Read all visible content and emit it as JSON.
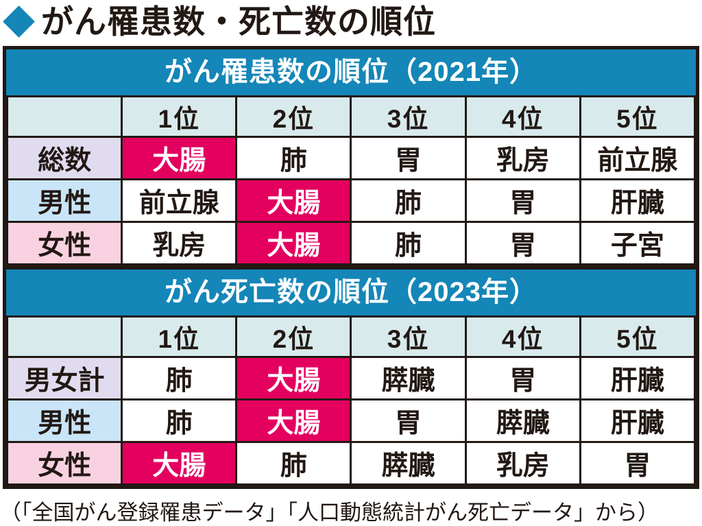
{
  "title": "がん罹患数・死亡数の順位",
  "source_note": "（「全国がん登録罹患データ」「人口動態統計がん死亡データ」から）",
  "colors": {
    "accent_blue": "#1486B8",
    "highlight_pink": "#E3005F",
    "rank_header_bg": "#D8EAEC",
    "total_label_bg": "#E0DBEE",
    "male_label_bg": "#C9E5F7",
    "female_label_bg": "#F8D2E0",
    "border_black": "#221814",
    "text_black": "#221814"
  },
  "chart_data": [
    {
      "type": "table",
      "title": "がん罹患数の順位（2021年）",
      "columns": [
        "",
        "1位",
        "2位",
        "3位",
        "4位",
        "5位"
      ],
      "rows": [
        {
          "label": "総数",
          "cells": [
            {
              "text": "大腸",
              "highlight": true
            },
            {
              "text": "肺",
              "highlight": false
            },
            {
              "text": "胃",
              "highlight": false
            },
            {
              "text": "乳房",
              "highlight": false
            },
            {
              "text": "前立腺",
              "highlight": false
            }
          ]
        },
        {
          "label": "男性",
          "cells": [
            {
              "text": "前立腺",
              "highlight": false
            },
            {
              "text": "大腸",
              "highlight": true
            },
            {
              "text": "肺",
              "highlight": false
            },
            {
              "text": "胃",
              "highlight": false
            },
            {
              "text": "肝臓",
              "highlight": false
            }
          ]
        },
        {
          "label": "女性",
          "cells": [
            {
              "text": "乳房",
              "highlight": false
            },
            {
              "text": "大腸",
              "highlight": true
            },
            {
              "text": "肺",
              "highlight": false
            },
            {
              "text": "胃",
              "highlight": false
            },
            {
              "text": "子宮",
              "highlight": false
            }
          ]
        }
      ]
    },
    {
      "type": "table",
      "title": "がん死亡数の順位（2023年）",
      "columns": [
        "",
        "1位",
        "2位",
        "3位",
        "4位",
        "5位"
      ],
      "rows": [
        {
          "label": "男女計",
          "cells": [
            {
              "text": "肺",
              "highlight": false
            },
            {
              "text": "大腸",
              "highlight": true
            },
            {
              "text": "膵臓",
              "highlight": false
            },
            {
              "text": "胃",
              "highlight": false
            },
            {
              "text": "肝臓",
              "highlight": false
            }
          ]
        },
        {
          "label": "男性",
          "cells": [
            {
              "text": "肺",
              "highlight": false
            },
            {
              "text": "大腸",
              "highlight": true
            },
            {
              "text": "胃",
              "highlight": false
            },
            {
              "text": "膵臓",
              "highlight": false
            },
            {
              "text": "肝臓",
              "highlight": false
            }
          ]
        },
        {
          "label": "女性",
          "cells": [
            {
              "text": "大腸",
              "highlight": true
            },
            {
              "text": "肺",
              "highlight": false
            },
            {
              "text": "膵臓",
              "highlight": false
            },
            {
              "text": "乳房",
              "highlight": false
            },
            {
              "text": "胃",
              "highlight": false
            }
          ]
        }
      ]
    }
  ]
}
